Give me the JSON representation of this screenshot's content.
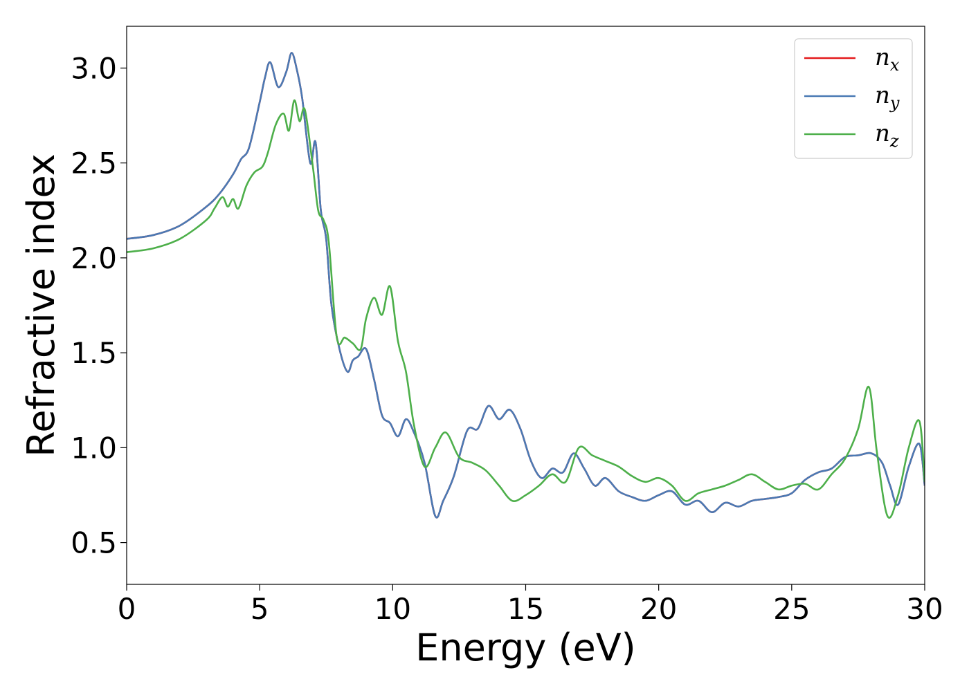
{
  "chart_data": {
    "type": "line",
    "xlabel": "Energy (eV)",
    "ylabel": "Refractive index",
    "xlim": [
      0,
      30
    ],
    "ylim": [
      0.28,
      3.22
    ],
    "xticks": [
      0,
      5,
      10,
      15,
      20,
      25,
      30
    ],
    "xtick_labels": [
      "0",
      "5",
      "10",
      "15",
      "20",
      "25",
      "30"
    ],
    "yticks": [
      0.5,
      1.0,
      1.5,
      2.0,
      2.5,
      3.0
    ],
    "ytick_labels": [
      "0.5",
      "1.0",
      "1.5",
      "2.0",
      "2.5",
      "3.0"
    ],
    "grid": false,
    "legend_position": "top-right",
    "series": [
      {
        "name": "n_x",
        "legend_main": "n",
        "legend_sub": "x",
        "color": "#e41a1c",
        "x": [
          0,
          1,
          2,
          3,
          3.5,
          4,
          4.3,
          4.6,
          5.0,
          5.2,
          5.4,
          5.7,
          6.0,
          6.2,
          6.4,
          6.6,
          6.9,
          7.1,
          7.3,
          7.5,
          7.7,
          8.0,
          8.3,
          8.5,
          8.7,
          9.0,
          9.3,
          9.6,
          9.9,
          10.2,
          10.5,
          10.8,
          11.2,
          11.6,
          11.9,
          12.3,
          12.8,
          13.2,
          13.6,
          14.0,
          14.4,
          14.8,
          15.2,
          15.6,
          16.0,
          16.4,
          16.8,
          17.2,
          17.6,
          18.0,
          18.5,
          19.0,
          19.5,
          20.0,
          20.5,
          21.0,
          21.5,
          22.0,
          22.5,
          23.0,
          23.5,
          24.0,
          24.5,
          25.0,
          25.5,
          26.0,
          26.5,
          27.0,
          27.5,
          28.0,
          28.4,
          28.7,
          29.0,
          29.4,
          29.8,
          30.0
        ],
        "y": [
          2.1,
          2.12,
          2.17,
          2.27,
          2.34,
          2.44,
          2.52,
          2.58,
          2.82,
          2.95,
          3.03,
          2.9,
          2.98,
          3.08,
          2.99,
          2.84,
          2.5,
          2.61,
          2.25,
          2.1,
          1.75,
          1.52,
          1.4,
          1.46,
          1.48,
          1.52,
          1.36,
          1.17,
          1.13,
          1.06,
          1.15,
          1.08,
          0.92,
          0.64,
          0.72,
          0.85,
          1.09,
          1.1,
          1.22,
          1.15,
          1.2,
          1.1,
          0.93,
          0.84,
          0.89,
          0.87,
          0.97,
          0.89,
          0.8,
          0.84,
          0.77,
          0.74,
          0.72,
          0.75,
          0.77,
          0.7,
          0.72,
          0.66,
          0.71,
          0.69,
          0.72,
          0.73,
          0.74,
          0.76,
          0.83,
          0.87,
          0.89,
          0.95,
          0.96,
          0.97,
          0.92,
          0.8,
          0.7,
          0.9,
          1.02,
          0.8
        ]
      },
      {
        "name": "n_y",
        "legend_main": "n",
        "legend_sub": "y",
        "color": "#4a7ab4",
        "x": [
          0,
          1,
          2,
          3,
          3.5,
          4,
          4.3,
          4.6,
          5.0,
          5.2,
          5.4,
          5.7,
          6.0,
          6.2,
          6.4,
          6.6,
          6.9,
          7.1,
          7.3,
          7.5,
          7.7,
          8.0,
          8.3,
          8.5,
          8.7,
          9.0,
          9.3,
          9.6,
          9.9,
          10.2,
          10.5,
          10.8,
          11.2,
          11.6,
          11.9,
          12.3,
          12.8,
          13.2,
          13.6,
          14.0,
          14.4,
          14.8,
          15.2,
          15.6,
          16.0,
          16.4,
          16.8,
          17.2,
          17.6,
          18.0,
          18.5,
          19.0,
          19.5,
          20.0,
          20.5,
          21.0,
          21.5,
          22.0,
          22.5,
          23.0,
          23.5,
          24.0,
          24.5,
          25.0,
          25.5,
          26.0,
          26.5,
          27.0,
          27.5,
          28.0,
          28.4,
          28.7,
          29.0,
          29.4,
          29.8,
          30.0
        ],
        "y": [
          2.1,
          2.12,
          2.17,
          2.27,
          2.34,
          2.44,
          2.52,
          2.58,
          2.82,
          2.95,
          3.03,
          2.9,
          2.98,
          3.08,
          2.99,
          2.84,
          2.5,
          2.61,
          2.25,
          2.1,
          1.75,
          1.52,
          1.4,
          1.46,
          1.48,
          1.52,
          1.36,
          1.17,
          1.13,
          1.06,
          1.15,
          1.08,
          0.92,
          0.64,
          0.72,
          0.85,
          1.09,
          1.1,
          1.22,
          1.15,
          1.2,
          1.1,
          0.93,
          0.84,
          0.89,
          0.87,
          0.97,
          0.89,
          0.8,
          0.84,
          0.77,
          0.74,
          0.72,
          0.75,
          0.77,
          0.7,
          0.72,
          0.66,
          0.71,
          0.69,
          0.72,
          0.73,
          0.74,
          0.76,
          0.83,
          0.87,
          0.89,
          0.95,
          0.96,
          0.97,
          0.92,
          0.8,
          0.7,
          0.9,
          1.02,
          0.8
        ]
      },
      {
        "name": "n_z",
        "legend_main": "n",
        "legend_sub": "z",
        "color": "#4daf4a",
        "x": [
          0,
          1,
          2,
          3,
          3.3,
          3.6,
          3.8,
          4.0,
          4.2,
          4.5,
          4.8,
          5.1,
          5.3,
          5.6,
          5.9,
          6.1,
          6.3,
          6.5,
          6.7,
          7.0,
          7.2,
          7.4,
          7.6,
          7.9,
          8.2,
          8.5,
          8.8,
          9.0,
          9.3,
          9.6,
          9.9,
          10.2,
          10.5,
          10.8,
          11.2,
          11.6,
          12.0,
          12.5,
          13.0,
          13.5,
          14.0,
          14.5,
          15.0,
          15.5,
          16.0,
          16.5,
          17.0,
          17.5,
          18.0,
          18.5,
          19.0,
          19.5,
          20.0,
          20.5,
          21.0,
          21.5,
          22.0,
          22.5,
          23.0,
          23.5,
          24.0,
          24.5,
          25.0,
          25.5,
          26.0,
          26.5,
          27.0,
          27.5,
          27.9,
          28.2,
          28.6,
          29.0,
          29.4,
          29.8,
          30.0
        ],
        "y": [
          2.03,
          2.05,
          2.1,
          2.2,
          2.26,
          2.32,
          2.27,
          2.31,
          2.26,
          2.38,
          2.45,
          2.48,
          2.55,
          2.7,
          2.76,
          2.67,
          2.83,
          2.72,
          2.78,
          2.48,
          2.25,
          2.2,
          2.08,
          1.58,
          1.58,
          1.55,
          1.52,
          1.68,
          1.79,
          1.7,
          1.85,
          1.56,
          1.4,
          1.12,
          0.9,
          1.0,
          1.08,
          0.95,
          0.92,
          0.88,
          0.8,
          0.72,
          0.75,
          0.8,
          0.86,
          0.82,
          1.0,
          0.96,
          0.93,
          0.9,
          0.85,
          0.82,
          0.84,
          0.8,
          0.72,
          0.76,
          0.78,
          0.8,
          0.83,
          0.86,
          0.82,
          0.78,
          0.8,
          0.81,
          0.78,
          0.86,
          0.94,
          1.1,
          1.32,
          0.98,
          0.64,
          0.75,
          1.0,
          1.14,
          0.82
        ]
      }
    ]
  }
}
